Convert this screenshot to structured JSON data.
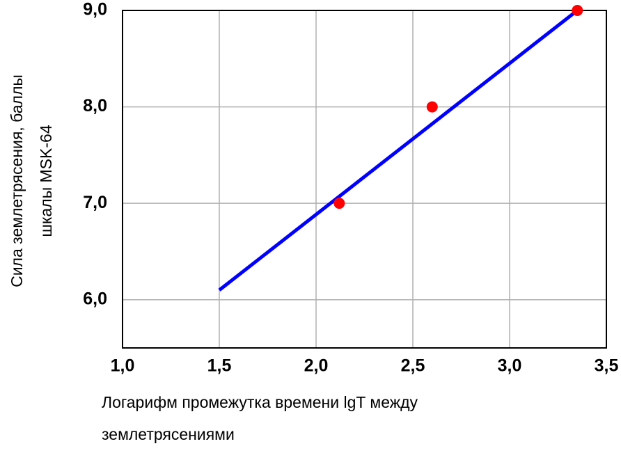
{
  "chart_data": {
    "type": "scatter",
    "ylabel": [
      "Сила землетрясения, баллы",
      "шкалы MSK-64"
    ],
    "xlabel": [
      "Логарифм промежутка времени lgT между",
      "землетрясениями"
    ],
    "xlim": [
      1.0,
      3.5
    ],
    "xticks": [
      {
        "value": 1.0,
        "label": "1,0"
      },
      {
        "value": 1.5,
        "label": "1,5"
      },
      {
        "value": 2.0,
        "label": "2,0"
      },
      {
        "value": 2.5,
        "label": "2,5"
      },
      {
        "value": 3.0,
        "label": "3,0"
      },
      {
        "value": 3.5,
        "label": "3,5"
      }
    ],
    "ylim": [
      5.5,
      9.0
    ],
    "yticks": [
      {
        "value": 6.0,
        "label": "6,0"
      },
      {
        "value": 7.0,
        "label": "7,0"
      },
      {
        "value": 8.0,
        "label": "8,0"
      },
      {
        "value": 9.0,
        "label": "9,0"
      }
    ],
    "grid": true,
    "series": [
      {
        "mode": "line",
        "color": "#0000ff",
        "x": [
          1.5,
          3.35
        ],
        "values": [
          6.1,
          9.0
        ]
      },
      {
        "mode": "markers",
        "color": "#ff0000",
        "x": [
          2.12,
          2.6,
          3.35
        ],
        "values": [
          7.0,
          8.0,
          9.0
        ]
      }
    ]
  }
}
